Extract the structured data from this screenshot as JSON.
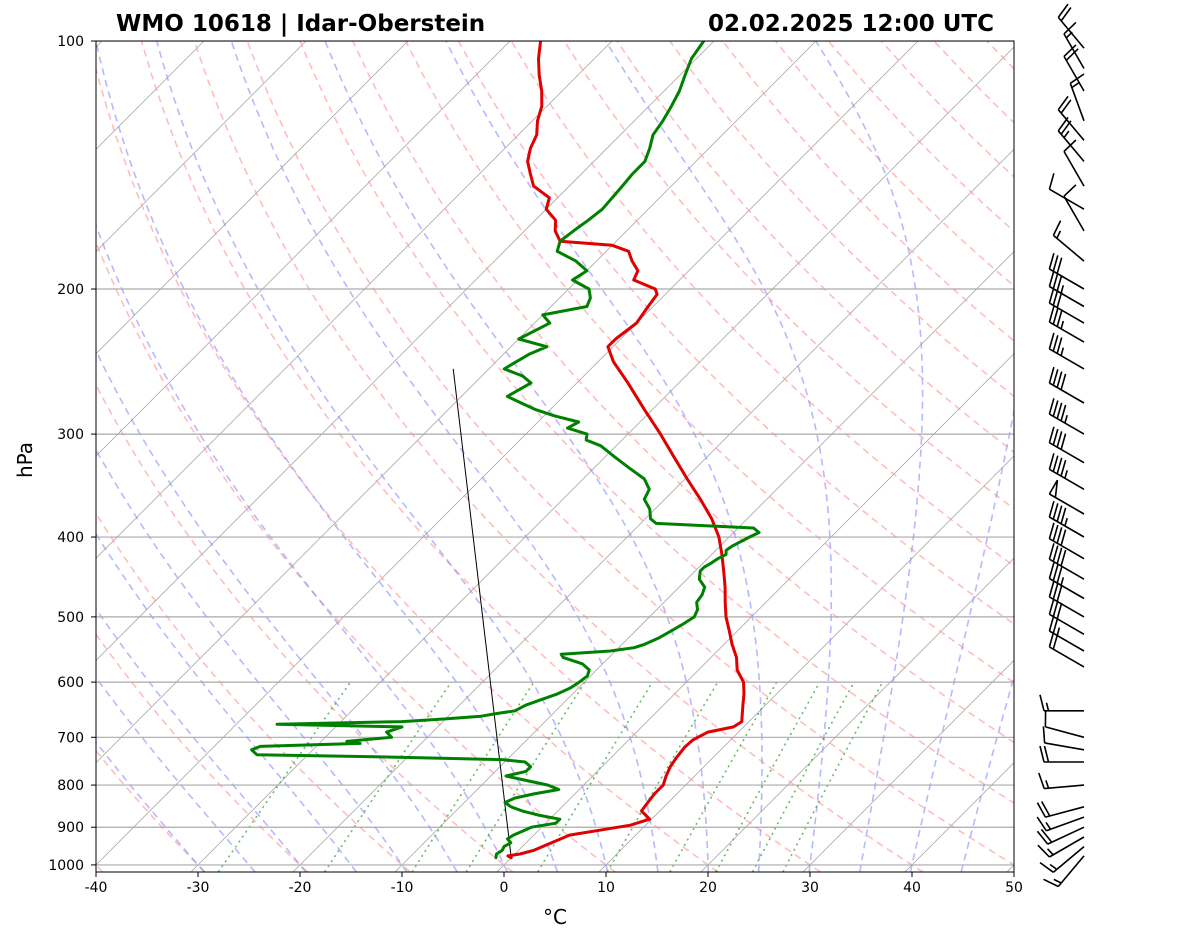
{
  "chart_data": {
    "type": "line",
    "title_left": "WMO 10618 | Idar-Oberstein",
    "title_right": "02.02.2025 12:00 UTC",
    "xlabel": "°C",
    "ylabel": "hPa",
    "xlim": [
      -40,
      50
    ],
    "ylim": [
      1020,
      100
    ],
    "x_ticks": [
      -40,
      -30,
      -20,
      -10,
      0,
      10,
      20,
      30,
      40,
      50
    ],
    "y_ticks": [
      100,
      200,
      300,
      400,
      500,
      600,
      700,
      800,
      900,
      1000
    ],
    "skew_factor": 35,
    "colors": {
      "temperature": "#e00000",
      "dewpoint": "#008000",
      "isotherm": "#888888",
      "dry_adiabat": "#ff9999",
      "moist_adiabat": "#8888ff",
      "mixing_ratio": "#44aa44",
      "parcel": "#000000"
    },
    "series": [
      {
        "name": "Temperature",
        "points": [
          [
            980,
            0.0
          ],
          [
            975,
            -0.5
          ],
          [
            970,
            0.5
          ],
          [
            960,
            1.5
          ],
          [
            940,
            2.5
          ],
          [
            920,
            3.5
          ],
          [
            905,
            6.5
          ],
          [
            895,
            8.5
          ],
          [
            880,
            9.8
          ],
          [
            860,
            8.2
          ],
          [
            840,
            8.0
          ],
          [
            820,
            7.8
          ],
          [
            800,
            7.8
          ],
          [
            780,
            7.2
          ],
          [
            760,
            6.7
          ],
          [
            740,
            6.4
          ],
          [
            720,
            6.2
          ],
          [
            705,
            6.3
          ],
          [
            690,
            7.0
          ],
          [
            680,
            9.0
          ],
          [
            670,
            9.3
          ],
          [
            660,
            8.8
          ],
          [
            640,
            7.8
          ],
          [
            620,
            6.8
          ],
          [
            600,
            5.6
          ],
          [
            580,
            3.8
          ],
          [
            560,
            2.5
          ],
          [
            540,
            0.8
          ],
          [
            520,
            -0.8
          ],
          [
            500,
            -2.5
          ],
          [
            480,
            -4.0
          ],
          [
            460,
            -5.5
          ],
          [
            440,
            -7.2
          ],
          [
            420,
            -9.0
          ],
          [
            400,
            -11.0
          ],
          [
            380,
            -13.5
          ],
          [
            360,
            -16.5
          ],
          [
            340,
            -19.8
          ],
          [
            320,
            -23.2
          ],
          [
            300,
            -26.8
          ],
          [
            280,
            -30.8
          ],
          [
            260,
            -35.0
          ],
          [
            245,
            -38.5
          ],
          [
            235,
            -40.5
          ],
          [
            230,
            -40.5
          ],
          [
            220,
            -40.0
          ],
          [
            210,
            -40.5
          ],
          [
            203,
            -40.8
          ],
          [
            200,
            -41.5
          ],
          [
            195,
            -44.5
          ],
          [
            190,
            -45.0
          ],
          [
            185,
            -46.5
          ],
          [
            180,
            -47.8
          ],
          [
            177,
            -50.0
          ],
          [
            175,
            -55.5
          ],
          [
            170,
            -57.0
          ],
          [
            165,
            -58.0
          ],
          [
            160,
            -60.0
          ],
          [
            155,
            -60.8
          ],
          [
            150,
            -63.5
          ],
          [
            145,
            -65.0
          ],
          [
            140,
            -66.5
          ],
          [
            135,
            -67.5
          ],
          [
            130,
            -68.2
          ],
          [
            125,
            -69.5
          ],
          [
            120,
            -70.5
          ],
          [
            115,
            -72.0
          ],
          [
            110,
            -73.8
          ],
          [
            105,
            -75.5
          ],
          [
            100,
            -77.0
          ]
        ]
      },
      {
        "name": "Dewpoint",
        "points": [
          [
            980,
            -1.5
          ],
          [
            970,
            -1.8
          ],
          [
            960,
            -1.6
          ],
          [
            950,
            -1.8
          ],
          [
            940,
            -1.5
          ],
          [
            930,
            -2.2
          ],
          [
            920,
            -2.0
          ],
          [
            910,
            -1.5
          ],
          [
            900,
            -1.0
          ],
          [
            890,
            1.0
          ],
          [
            880,
            1.0
          ],
          [
            870,
            -1.5
          ],
          [
            860,
            -3.5
          ],
          [
            850,
            -5.0
          ],
          [
            840,
            -6.0
          ],
          [
            830,
            -5.5
          ],
          [
            820,
            -4.0
          ],
          [
            810,
            -2.0
          ],
          [
            800,
            -3.5
          ],
          [
            790,
            -6.0
          ],
          [
            780,
            -8.5
          ],
          [
            770,
            -7.0
          ],
          [
            760,
            -7.0
          ],
          [
            750,
            -8.0
          ],
          [
            745,
            -10.5
          ],
          [
            740,
            -21.0
          ],
          [
            735,
            -35.0
          ],
          [
            725,
            -36.0
          ],
          [
            718,
            -35.5
          ],
          [
            712,
            -26.0
          ],
          [
            708,
            -27.5
          ],
          [
            700,
            -23.5
          ],
          [
            695,
            -24.0
          ],
          [
            690,
            -24.5
          ],
          [
            680,
            -23.5
          ],
          [
            675,
            -36.0
          ],
          [
            670,
            -24.0
          ],
          [
            665,
            -20.0
          ],
          [
            660,
            -16.8
          ],
          [
            655,
            -15.5
          ],
          [
            650,
            -14.0
          ],
          [
            640,
            -13.5
          ],
          [
            630,
            -12.5
          ],
          [
            620,
            -11.5
          ],
          [
            610,
            -10.8
          ],
          [
            600,
            -10.5
          ],
          [
            590,
            -10.3
          ],
          [
            580,
            -10.7
          ],
          [
            570,
            -12.0
          ],
          [
            560,
            -14.5
          ],
          [
            555,
            -15.0
          ],
          [
            550,
            -10.5
          ],
          [
            545,
            -8.5
          ],
          [
            540,
            -7.8
          ],
          [
            530,
            -7.0
          ],
          [
            520,
            -6.5
          ],
          [
            510,
            -6.0
          ],
          [
            500,
            -5.6
          ],
          [
            490,
            -6.0
          ],
          [
            480,
            -6.8
          ],
          [
            470,
            -7.0
          ],
          [
            460,
            -7.5
          ],
          [
            450,
            -8.8
          ],
          [
            440,
            -9.5
          ],
          [
            435,
            -9.5
          ],
          [
            430,
            -9.2
          ],
          [
            425,
            -9.0
          ],
          [
            420,
            -8.6
          ],
          [
            415,
            -9.0
          ],
          [
            410,
            -8.8
          ],
          [
            400,
            -8.0
          ],
          [
            395,
            -7.5
          ],
          [
            390,
            -8.5
          ],
          [
            385,
            -18.5
          ],
          [
            380,
            -19.5
          ],
          [
            370,
            -20.5
          ],
          [
            360,
            -22.0
          ],
          [
            350,
            -22.5
          ],
          [
            340,
            -24.0
          ],
          [
            330,
            -26.5
          ],
          [
            320,
            -29.0
          ],
          [
            310,
            -31.5
          ],
          [
            305,
            -33.5
          ],
          [
            300,
            -34.0
          ],
          [
            295,
            -36.5
          ],
          [
            290,
            -36.0
          ],
          [
            285,
            -39.0
          ],
          [
            280,
            -41.5
          ],
          [
            275,
            -43.5
          ],
          [
            270,
            -45.5
          ],
          [
            260,
            -44.5
          ],
          [
            255,
            -46.0
          ],
          [
            250,
            -48.5
          ],
          [
            240,
            -47.5
          ],
          [
            235,
            -46.5
          ],
          [
            230,
            -50.0
          ],
          [
            220,
            -48.5
          ],
          [
            215,
            -50.0
          ],
          [
            210,
            -46.5
          ],
          [
            205,
            -47.0
          ],
          [
            200,
            -48.0
          ],
          [
            195,
            -50.5
          ],
          [
            190,
            -50.0
          ],
          [
            185,
            -52.0
          ],
          [
            180,
            -54.8
          ],
          [
            175,
            -55.5
          ],
          [
            170,
            -55.2
          ],
          [
            165,
            -54.8
          ],
          [
            160,
            -54.5
          ],
          [
            150,
            -54.8
          ],
          [
            145,
            -55.0
          ],
          [
            140,
            -55.0
          ],
          [
            135,
            -55.8
          ],
          [
            130,
            -56.8
          ],
          [
            125,
            -57.2
          ],
          [
            120,
            -57.8
          ],
          [
            115,
            -58.5
          ],
          [
            110,
            -59.5
          ],
          [
            105,
            -60.5
          ],
          [
            100,
            -61.0
          ]
        ]
      }
    ],
    "parcel_line": {
      "name": "Reference line",
      "points": [
        [
          980,
          0.0
        ],
        [
          250,
          -53.5
        ]
      ]
    },
    "wind_barbs": [
      {
        "p": 975,
        "dir": 220,
        "kt": 15
      },
      {
        "p": 950,
        "dir": 230,
        "kt": 15
      },
      {
        "p": 925,
        "dir": 240,
        "kt": 15
      },
      {
        "p": 900,
        "dir": 245,
        "kt": 20
      },
      {
        "p": 875,
        "dir": 250,
        "kt": 15
      },
      {
        "p": 850,
        "dir": 255,
        "kt": 20
      },
      {
        "p": 800,
        "dir": 265,
        "kt": 15
      },
      {
        "p": 750,
        "dir": 270,
        "kt": 20
      },
      {
        "p": 725,
        "dir": 280,
        "kt": 10
      },
      {
        "p": 700,
        "dir": 285,
        "kt": 10
      },
      {
        "p": 650,
        "dir": 270,
        "kt": 15
      },
      {
        "p": 575,
        "dir": 300,
        "kt": 20
      },
      {
        "p": 550,
        "dir": 300,
        "kt": 25
      },
      {
        "p": 525,
        "dir": 300,
        "kt": 30
      },
      {
        "p": 500,
        "dir": 300,
        "kt": 30
      },
      {
        "p": 475,
        "dir": 300,
        "kt": 35
      },
      {
        "p": 450,
        "dir": 300,
        "kt": 40
      },
      {
        "p": 425,
        "dir": 300,
        "kt": 40
      },
      {
        "p": 400,
        "dir": 300,
        "kt": 45
      },
      {
        "p": 375,
        "dir": 300,
        "kt": 50
      },
      {
        "p": 350,
        "dir": 300,
        "kt": 45
      },
      {
        "p": 325,
        "dir": 300,
        "kt": 40
      },
      {
        "p": 300,
        "dir": 300,
        "kt": 45
      },
      {
        "p": 275,
        "dir": 300,
        "kt": 40
      },
      {
        "p": 250,
        "dir": 300,
        "kt": 35
      },
      {
        "p": 232,
        "dir": 300,
        "kt": 35
      },
      {
        "p": 220,
        "dir": 300,
        "kt": 30
      },
      {
        "p": 210,
        "dir": 300,
        "kt": 35
      },
      {
        "p": 200,
        "dir": 300,
        "kt": 30
      },
      {
        "p": 185,
        "dir": 310,
        "kt": 15
      },
      {
        "p": 170,
        "dir": 330,
        "kt": 10
      },
      {
        "p": 160,
        "dir": 300,
        "kt": 10
      },
      {
        "p": 150,
        "dir": 330,
        "kt": 10
      },
      {
        "p": 140,
        "dir": 320,
        "kt": 25
      },
      {
        "p": 132,
        "dir": 320,
        "kt": 20
      },
      {
        "p": 125,
        "dir": 340,
        "kt": 15
      },
      {
        "p": 115,
        "dir": 330,
        "kt": 20
      },
      {
        "p": 108,
        "dir": 330,
        "kt": 15
      },
      {
        "p": 102,
        "dir": 320,
        "kt": 20
      }
    ]
  }
}
